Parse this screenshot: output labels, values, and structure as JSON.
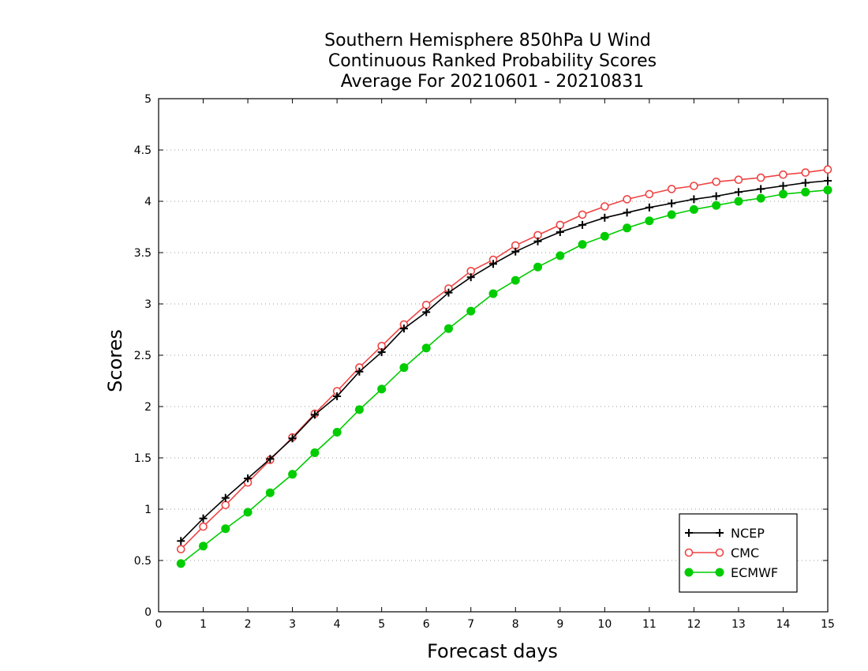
{
  "chart_data": {
    "type": "line",
    "title": [
      "Southern Hemisphere 850hPa U Wind",
      "Continuous Ranked Probability Scores",
      "Average For 20210601 - 20210831"
    ],
    "xlabel": "Forecast days",
    "ylabel": "Scores",
    "xlim": [
      0,
      15
    ],
    "ylim": [
      0,
      5
    ],
    "xticks": [
      "0",
      "1",
      "2",
      "3",
      "4",
      "5",
      "6",
      "7",
      "8",
      "9",
      "10",
      "11",
      "12",
      "13",
      "14",
      "15"
    ],
    "yticks": [
      "0",
      "0.5",
      "1",
      "1.5",
      "2",
      "2.5",
      "3",
      "3.5",
      "4",
      "4.5",
      "5"
    ],
    "grid": "horizontal dotted",
    "legend_position": "bottom-right",
    "x": [
      0.5,
      1,
      1.5,
      2,
      2.5,
      3,
      3.5,
      4,
      4.5,
      5,
      5.5,
      6,
      6.5,
      7,
      7.5,
      8,
      8.5,
      9,
      9.5,
      10,
      10.5,
      11,
      11.5,
      12,
      12.5,
      13,
      13.5,
      14,
      14.5,
      15
    ],
    "series": [
      {
        "name": "NCEP",
        "color": "#000000",
        "marker": "plus",
        "values": [
          0.69,
          0.91,
          1.11,
          1.3,
          1.49,
          1.69,
          1.92,
          2.1,
          2.34,
          2.53,
          2.76,
          2.92,
          3.11,
          3.26,
          3.39,
          3.51,
          3.61,
          3.7,
          3.77,
          3.84,
          3.89,
          3.94,
          3.98,
          4.02,
          4.05,
          4.09,
          4.12,
          4.15,
          4.18,
          4.2
        ]
      },
      {
        "name": "CMC",
        "color": "#ee4444",
        "marker": "open-circle",
        "values": [
          0.61,
          0.83,
          1.04,
          1.26,
          1.48,
          1.7,
          1.93,
          2.15,
          2.38,
          2.59,
          2.8,
          2.99,
          3.15,
          3.32,
          3.43,
          3.57,
          3.67,
          3.77,
          3.87,
          3.95,
          4.02,
          4.07,
          4.12,
          4.15,
          4.19,
          4.21,
          4.23,
          4.26,
          4.28,
          4.31
        ]
      },
      {
        "name": "ECMWF",
        "color": "#00cc00",
        "marker": "filled-circle",
        "values": [
          0.47,
          0.64,
          0.81,
          0.97,
          1.16,
          1.34,
          1.55,
          1.75,
          1.97,
          2.17,
          2.38,
          2.57,
          2.76,
          2.93,
          3.1,
          3.23,
          3.36,
          3.47,
          3.58,
          3.66,
          3.74,
          3.81,
          3.87,
          3.92,
          3.96,
          4.0,
          4.03,
          4.07,
          4.09,
          4.11
        ]
      }
    ]
  }
}
